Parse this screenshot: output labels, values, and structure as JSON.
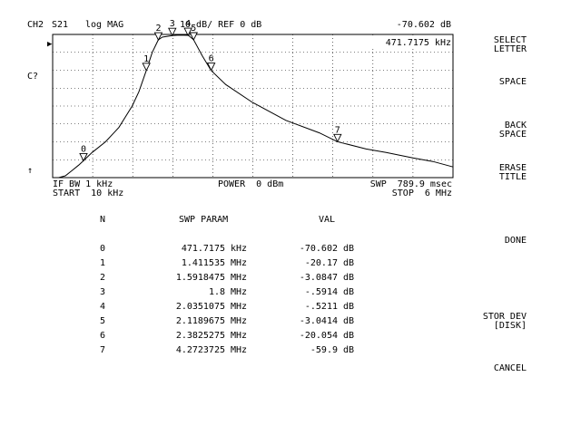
{
  "header": {
    "channel": "CH2",
    "param": "S21",
    "format": "log MAG",
    "scale": "10 dB/ REF 0 dB",
    "marker_readout_value": "-70.602 dB",
    "marker_readout_freq": "471.7175 kHz"
  },
  "left_indicators": {
    "ref_marker": "▶",
    "cal_status": "C?",
    "arrow": "↑"
  },
  "footer": {
    "ifbw": "IF BW 1 kHz",
    "start": "START  10 kHz",
    "power": "POWER  0 dBm",
    "sweep": "SWP  789.9 msec",
    "stop": "STOP  6 MHz"
  },
  "softkeys": [
    {
      "label": "SELECT\nLETTER"
    },
    {
      "label": "SPACE"
    },
    {
      "label": "BACK\nSPACE"
    },
    {
      "label": "ERASE\nTITLE"
    },
    {
      "label": "DONE"
    },
    {
      "label": "STOR DEV\n[DISK]"
    },
    {
      "label": "CANCEL"
    }
  ],
  "table": {
    "headers": {
      "n": "N",
      "param": "SWP PARAM",
      "val": "VAL"
    },
    "rows": [
      {
        "n": "0",
        "freq": "471.7175",
        "funit": "kHz",
        "val": "-70.602",
        "vunit": "dB"
      },
      {
        "n": "1",
        "freq": "1.411535",
        "funit": "MHz",
        "val": "-20.17",
        "vunit": "dB"
      },
      {
        "n": "2",
        "freq": "1.5918475",
        "funit": "MHz",
        "val": "-3.0847",
        "vunit": "dB"
      },
      {
        "n": "3",
        "freq": "1.8",
        "funit": "MHz",
        "val": "-.5914",
        "vunit": "dB"
      },
      {
        "n": "4",
        "freq": "2.0351075",
        "funit": "MHz",
        "val": "-.5211",
        "vunit": "dB"
      },
      {
        "n": "5",
        "freq": "2.1189675",
        "funit": "MHz",
        "val": "-3.0414",
        "vunit": "dB"
      },
      {
        "n": "6",
        "freq": "2.3825275",
        "funit": "MHz",
        "val": "-20.054",
        "vunit": "dB"
      },
      {
        "n": "7",
        "freq": "4.2723725",
        "funit": "MHz",
        "val": "-59.9",
        "vunit": "dB"
      }
    ]
  },
  "chart_data": {
    "type": "line",
    "xlim_mhz": [
      0.01,
      6
    ],
    "ylim_db": [
      -80,
      0
    ],
    "grid": true,
    "series": [
      {
        "points": [
          [
            0.01,
            -80
          ],
          [
            0.1,
            -80
          ],
          [
            0.2,
            -79
          ],
          [
            0.3,
            -76
          ],
          [
            0.4,
            -73
          ],
          [
            0.47,
            -70.6
          ],
          [
            0.6,
            -66
          ],
          [
            0.8,
            -60
          ],
          [
            1.0,
            -52
          ],
          [
            1.2,
            -40
          ],
          [
            1.3,
            -32
          ],
          [
            1.41,
            -20.2
          ],
          [
            1.5,
            -10
          ],
          [
            1.59,
            -3.1
          ],
          [
            1.65,
            -1.5
          ],
          [
            1.8,
            -0.6
          ],
          [
            1.9,
            -0.4
          ],
          [
            2.04,
            -0.5
          ],
          [
            2.12,
            -3.0
          ],
          [
            2.25,
            -12
          ],
          [
            2.38,
            -20.1
          ],
          [
            2.6,
            -28
          ],
          [
            3.0,
            -38
          ],
          [
            3.5,
            -48
          ],
          [
            4.0,
            -55
          ],
          [
            4.27,
            -59.9
          ],
          [
            4.7,
            -64
          ],
          [
            5.0,
            -66
          ],
          [
            5.4,
            -69
          ],
          [
            5.7,
            -71
          ],
          [
            6.0,
            -74
          ]
        ]
      }
    ],
    "markers": [
      {
        "n": "0",
        "x": 0.4717175,
        "y": -70.602
      },
      {
        "n": "1",
        "x": 1.411535,
        "y": -20.17
      },
      {
        "n": "2",
        "x": 1.5918475,
        "y": -3.0847
      },
      {
        "n": "3",
        "x": 1.8,
        "y": -0.5914
      },
      {
        "n": "4",
        "x": 2.0351075,
        "y": -0.5211
      },
      {
        "n": "5",
        "x": 2.1189675,
        "y": -3.0414
      },
      {
        "n": "6",
        "x": 2.3825275,
        "y": -20.054
      },
      {
        "n": "7",
        "x": 4.2723725,
        "y": -59.9
      }
    ]
  }
}
